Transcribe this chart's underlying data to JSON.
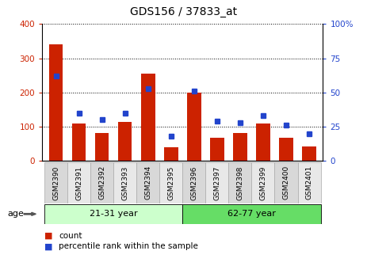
{
  "title": "GDS156 / 37833_at",
  "samples": [
    "GSM2390",
    "GSM2391",
    "GSM2392",
    "GSM2393",
    "GSM2394",
    "GSM2395",
    "GSM2396",
    "GSM2397",
    "GSM2398",
    "GSM2399",
    "GSM2400",
    "GSM2401"
  ],
  "counts": [
    340,
    110,
    82,
    115,
    255,
    40,
    200,
    68,
    82,
    110,
    68,
    42
  ],
  "percentiles": [
    62,
    35,
    30,
    35,
    53,
    18,
    51,
    29,
    28,
    33,
    26,
    20
  ],
  "bar_color": "#cc2200",
  "dot_color": "#2244cc",
  "ylim_left": [
    0,
    400
  ],
  "ylim_right": [
    0,
    100
  ],
  "yticks_left": [
    0,
    100,
    200,
    300,
    400
  ],
  "yticks_right": [
    0,
    25,
    50,
    75,
    100
  ],
  "ytick_labels_right": [
    "0",
    "25",
    "50",
    "75",
    "100%"
  ],
  "groups": [
    {
      "label": "21-31 year",
      "start": 0,
      "end": 6,
      "color": "#ccffcc"
    },
    {
      "label": "62-77 year",
      "start": 6,
      "end": 12,
      "color": "#66dd66"
    }
  ],
  "age_label": "age",
  "legend_items": [
    {
      "color": "#cc2200",
      "label": "count"
    },
    {
      "color": "#2244cc",
      "label": "percentile rank within the sample"
    }
  ],
  "tick_color_left": "#cc2200",
  "tick_color_right": "#2244cc",
  "cell_colors": [
    "#d8d8d8",
    "#e8e8e8"
  ]
}
